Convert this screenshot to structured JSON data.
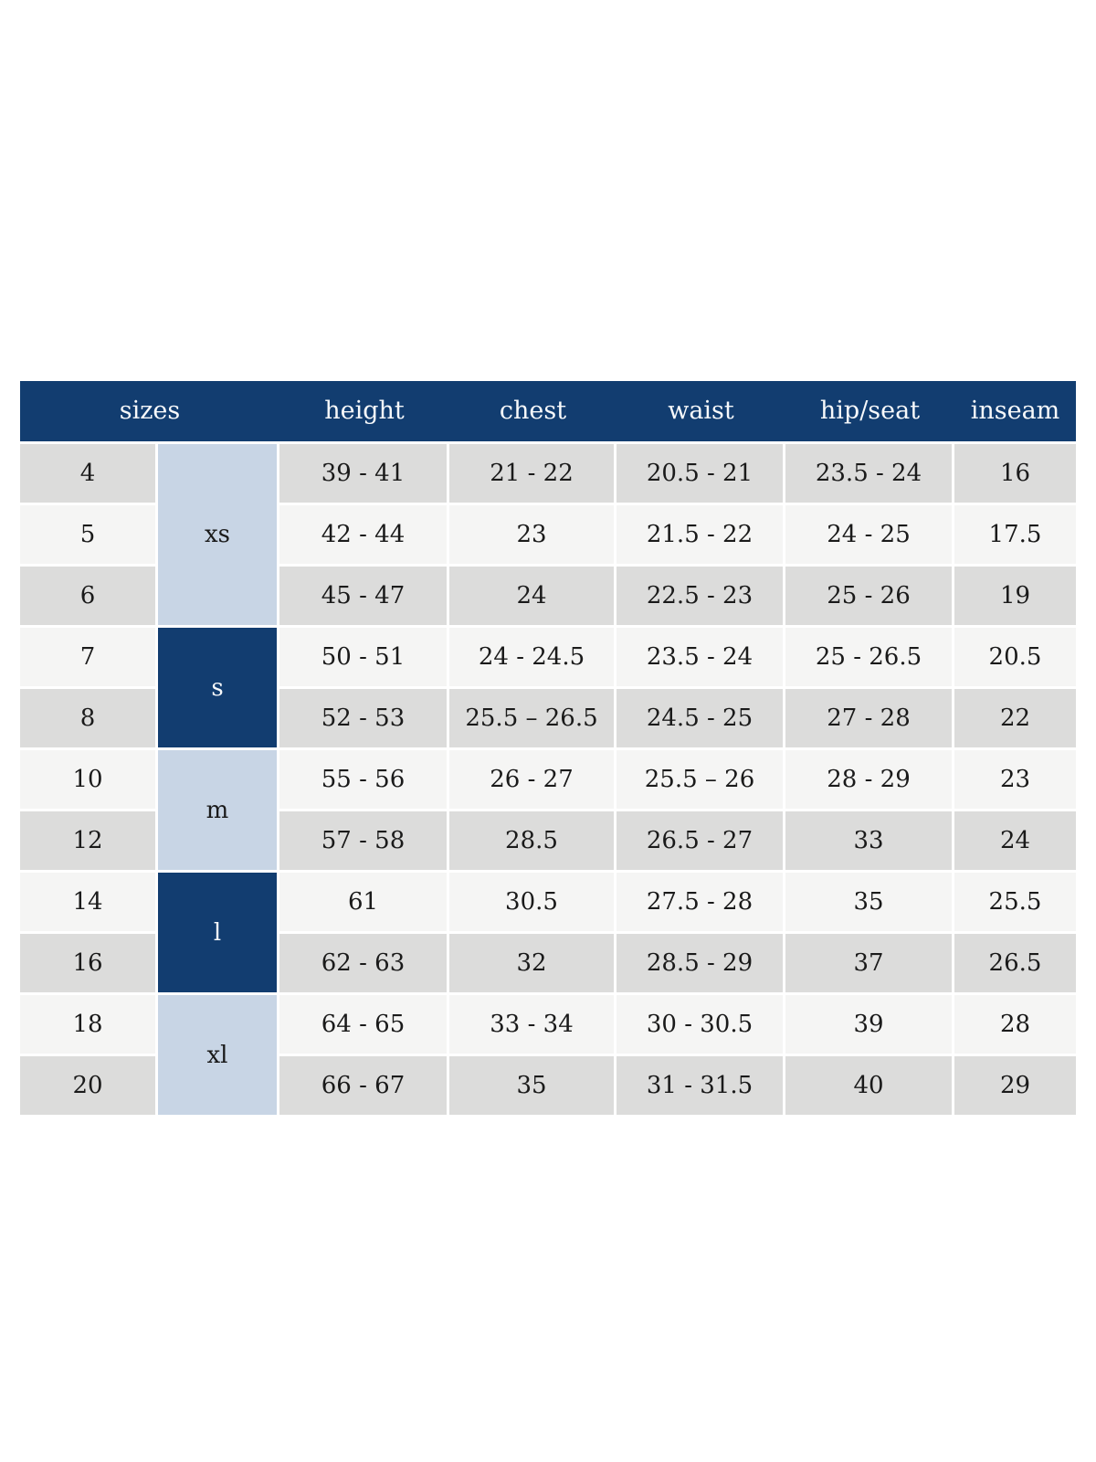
{
  "colors": {
    "header_bg": "#123d70",
    "group_dark_bg": "#123d70",
    "group_light_bg": "#c8d5e5",
    "row_gray_bg": "#dcdcdb",
    "row_light_bg": "#f5f5f4",
    "header_text": "#f7f9fb",
    "body_text": "#1a1a1a"
  },
  "chart_data": {
    "type": "table",
    "title": "",
    "columns": [
      "sizes",
      "height",
      "chest",
      "waist",
      "hip/seat",
      "inseam"
    ],
    "size_groups": [
      {
        "label": "xs",
        "sizes": [
          "4",
          "5",
          "6"
        ],
        "style": "light"
      },
      {
        "label": "s",
        "sizes": [
          "7",
          "8"
        ],
        "style": "dark"
      },
      {
        "label": "m",
        "sizes": [
          "10",
          "12"
        ],
        "style": "light"
      },
      {
        "label": "l",
        "sizes": [
          "14",
          "16"
        ],
        "style": "dark"
      },
      {
        "label": "xl",
        "sizes": [
          "18",
          "20"
        ],
        "style": "light"
      }
    ],
    "rows": [
      {
        "size": "4",
        "group": "xs",
        "height": "39 - 41",
        "chest": "21 - 22",
        "waist": "20.5 - 21",
        "hip_seat": "23.5 - 24",
        "inseam": "16"
      },
      {
        "size": "5",
        "group": "xs",
        "height": "42 - 44",
        "chest": "23",
        "waist": "21.5 - 22",
        "hip_seat": "24 - 25",
        "inseam": "17.5"
      },
      {
        "size": "6",
        "group": "xs",
        "height": "45 - 47",
        "chest": "24",
        "waist": "22.5 - 23",
        "hip_seat": "25 - 26",
        "inseam": "19"
      },
      {
        "size": "7",
        "group": "s",
        "height": "50 - 51",
        "chest": "24 - 24.5",
        "waist": "23.5 - 24",
        "hip_seat": "25 - 26.5",
        "inseam": "20.5"
      },
      {
        "size": "8",
        "group": "s",
        "height": "52 - 53",
        "chest": "25.5 – 26.5",
        "waist": "24.5 - 25",
        "hip_seat": "27 - 28",
        "inseam": "22"
      },
      {
        "size": "10",
        "group": "m",
        "height": "55 - 56",
        "chest": "26 - 27",
        "waist": "25.5 – 26",
        "hip_seat": "28 - 29",
        "inseam": "23"
      },
      {
        "size": "12",
        "group": "m",
        "height": "57 - 58",
        "chest": "28.5",
        "waist": "26.5 - 27",
        "hip_seat": "33",
        "inseam": "24"
      },
      {
        "size": "14",
        "group": "l",
        "height": "61",
        "chest": "30.5",
        "waist": "27.5 - 28",
        "hip_seat": "35",
        "inseam": "25.5"
      },
      {
        "size": "16",
        "group": "l",
        "height": "62 - 63",
        "chest": "32",
        "waist": "28.5 - 29",
        "hip_seat": "37",
        "inseam": "26.5"
      },
      {
        "size": "18",
        "group": "xl",
        "height": "64 - 65",
        "chest": "33 - 34",
        "waist": "30 - 30.5",
        "hip_seat": "39",
        "inseam": "28"
      },
      {
        "size": "20",
        "group": "xl",
        "height": "66 - 67",
        "chest": "35",
        "waist": "31 - 31.5",
        "hip_seat": "40",
        "inseam": "29"
      }
    ]
  }
}
